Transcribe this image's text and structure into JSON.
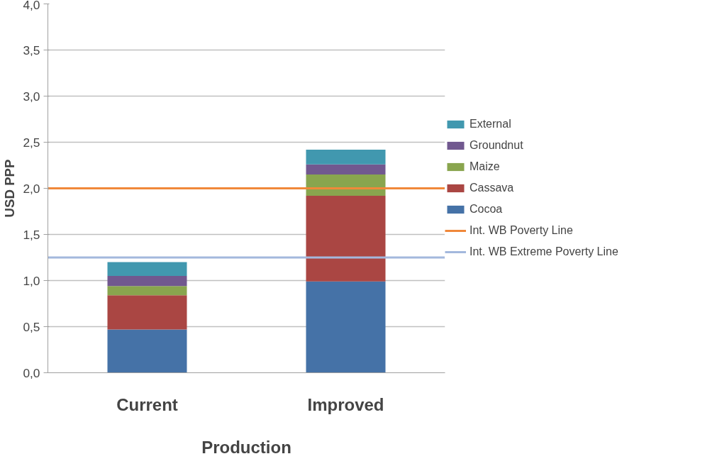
{
  "chart_data": {
    "type": "bar",
    "stacked": true,
    "xlabel": "Production",
    "ylabel": "USD PPP",
    "categories": [
      "Current",
      "Improved"
    ],
    "series": [
      {
        "name": "Cocoa",
        "color": "#4572a7",
        "values": [
          0.47,
          0.99
        ]
      },
      {
        "name": "Cassava",
        "color": "#aa4643",
        "values": [
          0.37,
          0.93
        ]
      },
      {
        "name": "Maize",
        "color": "#89a54e",
        "values": [
          0.1,
          0.23
        ]
      },
      {
        "name": "Groundnut",
        "color": "#71588f",
        "values": [
          0.11,
          0.11
        ]
      },
      {
        "name": "External",
        "color": "#4198af",
        "values": [
          0.15,
          0.16
        ]
      }
    ],
    "ref_lines": [
      {
        "axis": "y",
        "value": 2.0,
        "label": "Int. WB Poverty Line",
        "color": "#f0883a"
      },
      {
        "axis": "y",
        "value": 1.25,
        "label": "Int. WB Extreme Poverty Line",
        "color": "#a3b8dd"
      }
    ],
    "ylim": [
      0,
      4
    ],
    "yticks": [
      {
        "value": 0,
        "label": "0,0"
      },
      {
        "value": 0.5,
        "label": "0,5"
      },
      {
        "value": 1,
        "label": "1,0"
      },
      {
        "value": 1.5,
        "label": "1,5"
      },
      {
        "value": 2,
        "label": "2,0"
      },
      {
        "value": 2.5,
        "label": "2,5"
      },
      {
        "value": 3,
        "label": "3,0"
      },
      {
        "value": 3.5,
        "label": "3,5"
      },
      {
        "value": 4,
        "label": "4,0"
      }
    ],
    "grid": "y",
    "legend": "right"
  }
}
